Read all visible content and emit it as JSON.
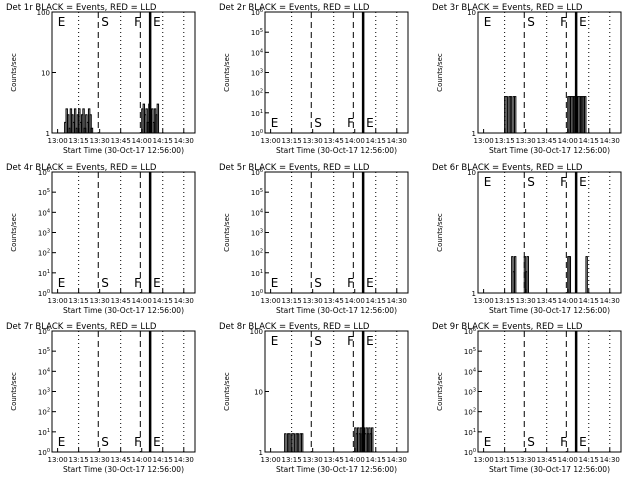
{
  "figure": {
    "xlabel": "Start Time (30-Oct-17 12:56:00)",
    "ylabel": "Counts/sec",
    "x_ticks": [
      "13:00",
      "13:15",
      "13:30",
      "13:45",
      "14:00",
      "14:15",
      "14:30"
    ],
    "marker_S": "S",
    "marker_E": "E",
    "marker_F": "F"
  },
  "chart_data": [
    {
      "type": "line",
      "title": "Det 1r BLACK = Events, RED = LLD",
      "scale": "log",
      "ylim": [
        1,
        100
      ],
      "y_ticks": [
        "1",
        "10",
        "100"
      ],
      "markers": [
        {
          "label": "E",
          "x": "12:58"
        },
        {
          "label": "S",
          "x": "13:29"
        },
        {
          "label": "F",
          "x": "14:01"
        },
        {
          "label": "E",
          "x": "14:06"
        }
      ],
      "series": [
        {
          "x": [
            "13:05",
            "13:06",
            "13:07",
            "13:08",
            "13:09",
            "13:10",
            "13:11",
            "13:12",
            "13:13",
            "13:14",
            "13:15",
            "13:16",
            "13:17",
            "13:18",
            "13:19",
            "13:20",
            "13:21",
            "13:22",
            "13:23",
            "13:24",
            "14:00",
            "14:01",
            "14:02",
            "14:03",
            "14:04",
            "14:05",
            "14:06",
            "14:07",
            "14:08",
            "14:09",
            "14:10",
            "14:11"
          ],
          "values": [
            1.5,
            2.5,
            2.0,
            1.2,
            2.5,
            2.0,
            1.5,
            2.5,
            1.2,
            2.0,
            2.5,
            1.5,
            2.0,
            2.5,
            1.2,
            2.0,
            1.5,
            2.5,
            2.0,
            1.2,
            2.5,
            3.0,
            2.0,
            2.5,
            1.5,
            3.0,
            2.0,
            2.5,
            1.5,
            2.5,
            2.0,
            3.0
          ]
        }
      ]
    },
    {
      "type": "line",
      "title": "Det 2r BLACK = Events, RED = LLD",
      "scale": "log",
      "ylim": [
        1,
        1000000
      ],
      "y_ticks": [
        "10^0",
        "10^1",
        "10^2",
        "10^3",
        "10^4",
        "10^5",
        "10^6"
      ],
      "markers": [
        {
          "label": "E",
          "x": "12:58"
        },
        {
          "label": "S",
          "x": "13:29"
        },
        {
          "label": "F",
          "x": "14:01"
        },
        {
          "label": "E",
          "x": "14:06"
        }
      ],
      "series": [
        {
          "x": [],
          "values": []
        }
      ]
    },
    {
      "type": "line",
      "title": "Det 3r BLACK = Events, RED = LLD",
      "scale": "log",
      "ylim": [
        1,
        10
      ],
      "y_ticks": [
        "1",
        "10"
      ],
      "markers": [
        {
          "label": "E",
          "x": "12:58"
        },
        {
          "label": "S",
          "x": "13:29"
        },
        {
          "label": "F",
          "x": "14:01"
        },
        {
          "label": "E",
          "x": "14:06"
        }
      ],
      "series": [
        {
          "x": [
            "13:15",
            "13:16",
            "13:17",
            "13:18",
            "13:19",
            "13:20",
            "13:21",
            "13:22",
            "14:00",
            "14:01",
            "14:02",
            "14:03",
            "14:04",
            "14:05",
            "14:06",
            "14:07",
            "14:08",
            "14:09",
            "14:10",
            "14:11",
            "14:12"
          ],
          "values": [
            2,
            2,
            1,
            2,
            2,
            1,
            2,
            2,
            2,
            2,
            2,
            2,
            2,
            2,
            2,
            2,
            2,
            2,
            2,
            2,
            2
          ]
        }
      ]
    },
    {
      "type": "line",
      "title": "Det 4r BLACK = Events, RED = LLD",
      "scale": "log",
      "ylim": [
        1,
        1000000
      ],
      "y_ticks": [
        "10^0",
        "10^1",
        "10^2",
        "10^3",
        "10^4",
        "10^5",
        "10^6"
      ],
      "markers": [
        {
          "label": "E",
          "x": "12:58"
        },
        {
          "label": "S",
          "x": "13:29"
        },
        {
          "label": "F",
          "x": "14:01"
        },
        {
          "label": "E",
          "x": "14:06"
        }
      ],
      "series": [
        {
          "x": [],
          "values": []
        }
      ]
    },
    {
      "type": "line",
      "title": "Det 5r BLACK = Events, RED = LLD",
      "scale": "log",
      "ylim": [
        1,
        1000000
      ],
      "y_ticks": [
        "10^0",
        "10^1",
        "10^2",
        "10^3",
        "10^4",
        "10^5",
        "10^6"
      ],
      "markers": [
        {
          "label": "E",
          "x": "12:58"
        },
        {
          "label": "S",
          "x": "13:29"
        },
        {
          "label": "F",
          "x": "14:01"
        },
        {
          "label": "E",
          "x": "14:06"
        }
      ],
      "series": [
        {
          "x": [],
          "values": []
        }
      ]
    },
    {
      "type": "line",
      "title": "Det 6r BLACK = Events, RED = LLD",
      "scale": "log",
      "ylim": [
        1,
        10
      ],
      "y_ticks": [
        "1",
        "10"
      ],
      "markers": [
        {
          "label": "E",
          "x": "12:58"
        },
        {
          "label": "S",
          "x": "13:29"
        },
        {
          "label": "F",
          "x": "14:01"
        },
        {
          "label": "E",
          "x": "14:06"
        }
      ],
      "series": [
        {
          "x": [
            "13:20",
            "13:21",
            "13:22",
            "13:29",
            "13:30",
            "13:31",
            "14:00",
            "14:01",
            "14:13"
          ],
          "values": [
            2,
            1.5,
            2,
            2,
            1.5,
            2,
            2,
            2,
            2
          ]
        }
      ]
    },
    {
      "type": "line",
      "title": "Det 7r BLACK = Events, RED = LLD",
      "scale": "log",
      "ylim": [
        1,
        1000000
      ],
      "y_ticks": [
        "10^0",
        "10^1",
        "10^2",
        "10^3",
        "10^4",
        "10^5",
        "10^6"
      ],
      "markers": [
        {
          "label": "E",
          "x": "12:58"
        },
        {
          "label": "S",
          "x": "13:29"
        },
        {
          "label": "F",
          "x": "14:01"
        },
        {
          "label": "E",
          "x": "14:06"
        }
      ],
      "series": [
        {
          "x": [],
          "values": []
        }
      ]
    },
    {
      "type": "line",
      "title": "Det 8r BLACK = Events, RED = LLD",
      "scale": "log",
      "ylim": [
        1,
        100
      ],
      "y_ticks": [
        "1",
        "10",
        "100"
      ],
      "markers": [
        {
          "label": "E",
          "x": "12:58"
        },
        {
          "label": "S",
          "x": "13:29"
        },
        {
          "label": "F",
          "x": "14:01"
        },
        {
          "label": "E",
          "x": "14:06"
        }
      ],
      "series": [
        {
          "x": [
            "13:10",
            "13:11",
            "13:12",
            "13:13",
            "13:14",
            "13:15",
            "13:16",
            "13:17",
            "13:18",
            "13:19",
            "13:20",
            "13:21",
            "13:22",
            "14:00",
            "14:01",
            "14:02",
            "14:03",
            "14:04",
            "14:05",
            "14:06",
            "14:07",
            "14:08",
            "14:09",
            "14:10",
            "14:11",
            "14:12"
          ],
          "values": [
            2,
            1,
            2,
            2,
            1,
            2,
            2,
            1,
            2,
            2,
            1,
            2,
            2,
            2.5,
            2,
            2.5,
            2,
            2.5,
            2,
            2.5,
            2,
            2.5,
            2,
            2.5,
            2,
            2.5
          ]
        }
      ]
    },
    {
      "type": "line",
      "title": "Det 9r BLACK = Events, RED = LLD",
      "scale": "log",
      "ylim": [
        1,
        1000000
      ],
      "y_ticks": [
        "10^0",
        "10^1",
        "10^2",
        "10^3",
        "10^4",
        "10^5",
        "10^6"
      ],
      "markers": [
        {
          "label": "E",
          "x": "12:58"
        },
        {
          "label": "S",
          "x": "13:29"
        },
        {
          "label": "F",
          "x": "14:01"
        },
        {
          "label": "E",
          "x": "14:06"
        }
      ],
      "series": [
        {
          "x": [],
          "values": []
        }
      ]
    }
  ]
}
